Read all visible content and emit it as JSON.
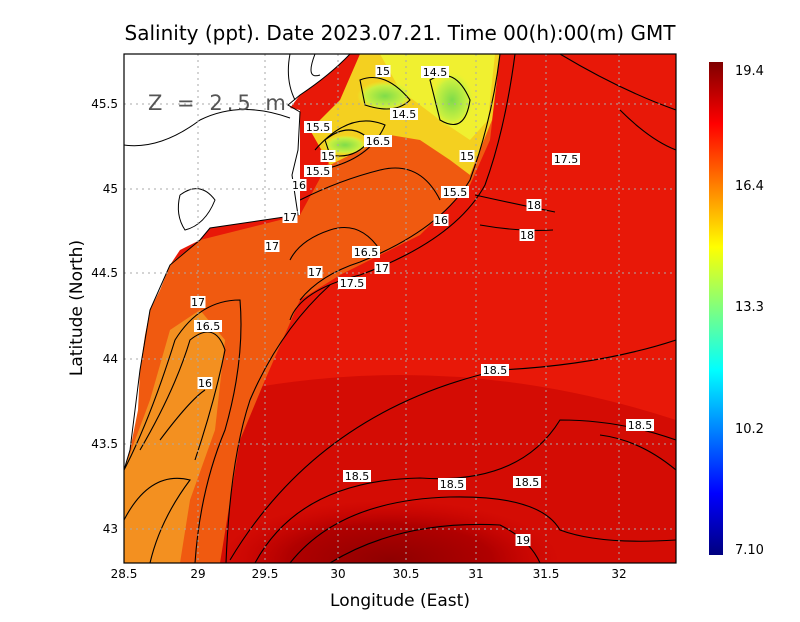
{
  "title": "Salinity (ppt). Date 2023.07.21. Time 00(h):00(m) GMT",
  "depth_label": "Z = 2.5 m",
  "x_axis": {
    "label": "Longitude (East)",
    "ticks": [
      "28.5",
      "29",
      "29.5",
      "30",
      "30.5",
      "31",
      "31.5",
      "32"
    ],
    "range": [
      28.5,
      32.4
    ]
  },
  "y_axis": {
    "label": "Latitude (North)",
    "ticks": [
      "45.5",
      "45",
      "44.5",
      "44",
      "43.5",
      "43"
    ],
    "range": [
      42.8,
      45.8
    ]
  },
  "colorbar": {
    "labels": [
      "19.4",
      "16.4",
      "13.3",
      "10.2",
      "7.10"
    ],
    "min": 7.1,
    "max": 19.4,
    "colors": [
      "#00007f",
      "#0000ff",
      "#007fff",
      "#00ffff",
      "#7fff7f",
      "#ffff00",
      "#ff7f00",
      "#ff0000",
      "#7f0000"
    ]
  },
  "contour_labels": [
    "15",
    "14.5",
    "14.5",
    "15.5",
    "16.5",
    "15",
    "15.5",
    "16",
    "15",
    "17.5",
    "15.5",
    "18",
    "16",
    "18",
    "17",
    "17",
    "16.5",
    "17",
    "17",
    "17.5",
    "17",
    "16.5",
    "16",
    "18.5",
    "18.5",
    "18.5",
    "18.5",
    "18.5",
    "19"
  ]
}
